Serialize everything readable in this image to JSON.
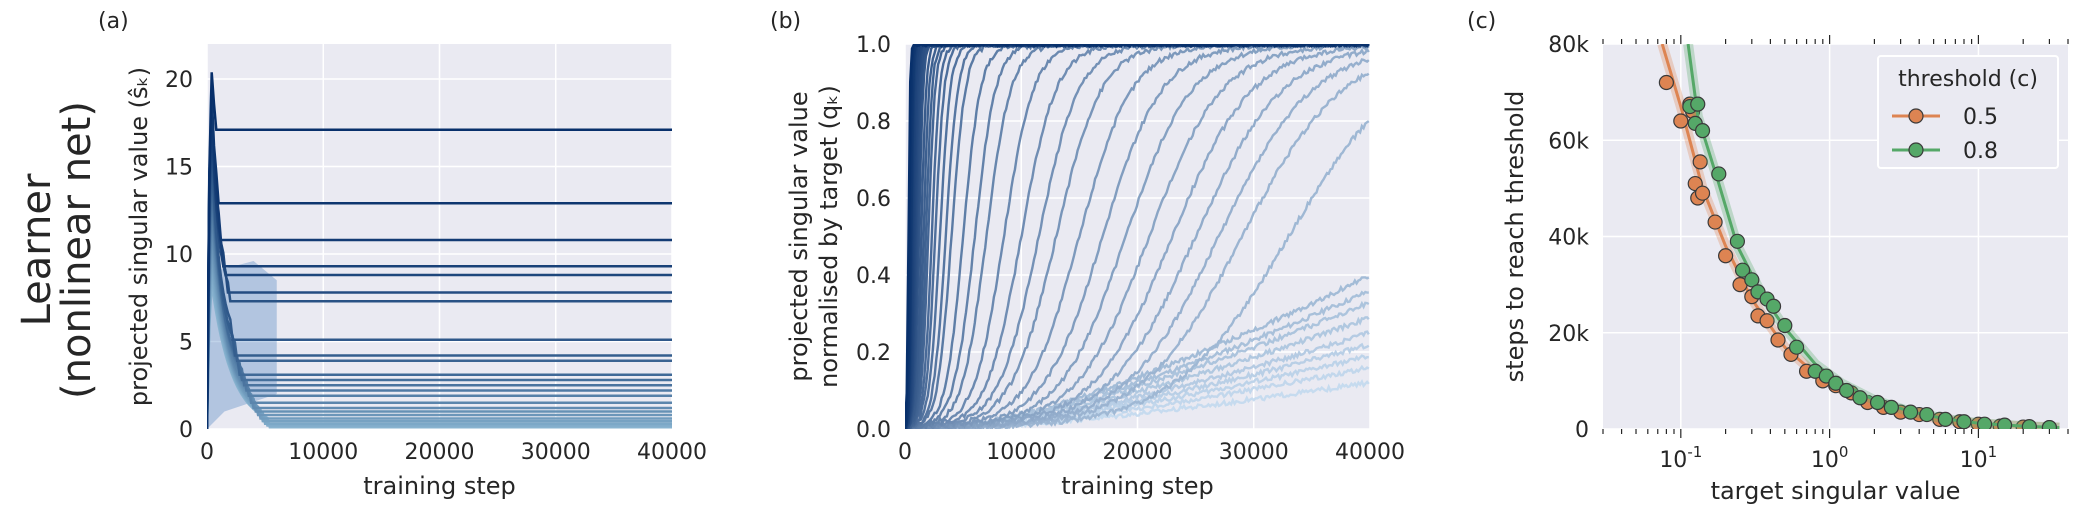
{
  "row_label": [
    "Learner",
    "(nonlinear net)"
  ],
  "chart_data": [
    {
      "id": "a",
      "panel_label": "(a)",
      "type": "line",
      "xlabel": "training step",
      "ylabel": "projected singular value (ŝₖ)",
      "xlim": [
        0,
        40000
      ],
      "ylim": [
        0,
        22
      ],
      "xticks": [
        0,
        10000,
        20000,
        30000,
        40000
      ],
      "yticks": [
        0,
        5,
        10,
        15,
        20
      ],
      "grid": true,
      "color_map": [
        "#9ecae1",
        "#08306b"
      ],
      "plateaus": [
        17.1,
        12.9,
        10.8,
        9.3,
        8.8,
        7.8,
        7.3,
        5.1,
        4.2,
        3.9,
        3.1,
        2.8,
        2.5,
        2.2,
        1.9,
        1.5,
        1.2,
        1.0,
        0.8,
        0.6,
        0.45,
        0.3,
        0.2,
        0.1
      ],
      "spike_peak": 22,
      "plateau_onset_step": 1500
    },
    {
      "id": "b",
      "panel_label": "(b)",
      "type": "line",
      "xlabel": "training step",
      "ylabel_lines": [
        "projected singular value",
        "normalised by target (qₖ)"
      ],
      "xlim": [
        0,
        40000
      ],
      "ylim": [
        0,
        1.0
      ],
      "xticks": [
        0,
        10000,
        20000,
        30000,
        40000
      ],
      "yticks": [
        0.0,
        0.2,
        0.4,
        0.6,
        0.8,
        1.0
      ],
      "ytick_labels": [
        "0.0",
        "0.2",
        "0.4",
        "0.6",
        "0.8",
        "1.0"
      ],
      "grid": true,
      "color_map": [
        "#c6dbef",
        "#08306b"
      ],
      "midpoint_steps": [
        300,
        400,
        500,
        550,
        600,
        700,
        800,
        900,
        1000,
        1100,
        1200,
        1400,
        1600,
        1800,
        2000,
        2300,
        2600,
        3000,
        3500,
        4000,
        5000,
        6000,
        7000,
        8500,
        10000,
        11500,
        13000,
        15000,
        17000,
        19000,
        21000,
        23000,
        25000,
        27000,
        29000,
        33000
      ],
      "slow_final_values": [
        0.4,
        0.36,
        0.33,
        0.29,
        0.25,
        0.22,
        0.19,
        0.16,
        0.12
      ]
    },
    {
      "id": "c",
      "panel_label": "(c)",
      "type": "scatter",
      "xlabel": "target singular value",
      "ylabel": "steps to reach threshold",
      "xscale": "log",
      "xlim": [
        0.03,
        40
      ],
      "xticks": [
        0.1,
        1,
        10
      ],
      "xtick_labels": [
        "10",
        "10",
        "10"
      ],
      "xtick_exponents": [
        "-1",
        "0",
        "1"
      ],
      "ylim": [
        0,
        80000
      ],
      "yticks": [
        0,
        20000,
        40000,
        60000,
        80000
      ],
      "ytick_labels": [
        "0",
        "20k",
        "40k",
        "60k",
        "80k"
      ],
      "grid": true,
      "legend": {
        "title": "threshold (c)",
        "placement": "top-right"
      },
      "series": [
        {
          "name": "0.5",
          "color": "#dd8452",
          "points": [
            [
              0.08,
              72000
            ],
            [
              0.1,
              64000
            ],
            [
              0.115,
              67500
            ],
            [
              0.12,
              66000
            ],
            [
              0.125,
              51000
            ],
            [
              0.13,
              48000
            ],
            [
              0.135,
              55500
            ],
            [
              0.14,
              49000
            ],
            [
              0.17,
              43000
            ],
            [
              0.2,
              36000
            ],
            [
              0.25,
              30000
            ],
            [
              0.3,
              27500
            ],
            [
              0.33,
              23500
            ],
            [
              0.38,
              22500
            ],
            [
              0.45,
              18500
            ],
            [
              0.55,
              15500
            ],
            [
              0.7,
              12000
            ],
            [
              0.9,
              10000
            ],
            [
              1.1,
              9000
            ],
            [
              1.4,
              7500
            ],
            [
              1.8,
              5500
            ],
            [
              2.3,
              4500
            ],
            [
              3.0,
              3500
            ],
            [
              4.0,
              3000
            ],
            [
              5.5,
              2000
            ],
            [
              7.5,
              1500
            ],
            [
              10,
              1000
            ],
            [
              14,
              600
            ],
            [
              20,
              400
            ],
            [
              30,
              300
            ]
          ],
          "fit": [
            [
              0.075,
              80000
            ],
            [
              0.1,
              67000
            ],
            [
              0.14,
              50000
            ],
            [
              0.2,
              38000
            ],
            [
              0.3,
              27000
            ],
            [
              0.5,
              17000
            ],
            [
              0.8,
              11500
            ],
            [
              1.2,
              8200
            ],
            [
              2,
              5200
            ],
            [
              3.5,
              3200
            ],
            [
              6,
              1900
            ],
            [
              10,
              1100
            ],
            [
              20,
              550
            ],
            [
              35,
              300
            ]
          ]
        },
        {
          "name": "0.8",
          "color": "#55a868",
          "points": [
            [
              0.115,
              67000
            ],
            [
              0.125,
              63500
            ],
            [
              0.13,
              67500
            ],
            [
              0.14,
              62000
            ],
            [
              0.18,
              53000
            ],
            [
              0.24,
              39000
            ],
            [
              0.26,
              33000
            ],
            [
              0.3,
              31000
            ],
            [
              0.33,
              28500
            ],
            [
              0.38,
              27000
            ],
            [
              0.42,
              25500
            ],
            [
              0.5,
              21500
            ],
            [
              0.6,
              17000
            ],
            [
              0.8,
              12000
            ],
            [
              0.95,
              11000
            ],
            [
              1.1,
              9500
            ],
            [
              1.3,
              8000
            ],
            [
              1.6,
              6500
            ],
            [
              2.1,
              5500
            ],
            [
              2.6,
              4500
            ],
            [
              3.5,
              3500
            ],
            [
              4.5,
              3000
            ],
            [
              6,
              2000
            ],
            [
              8,
              1500
            ],
            [
              11,
              1000
            ],
            [
              15,
              800
            ],
            [
              22,
              500
            ],
            [
              30,
              300
            ]
          ],
          "fit": [
            [
              0.112,
              80000
            ],
            [
              0.13,
              65000
            ],
            [
              0.18,
              51000
            ],
            [
              0.24,
              38000
            ],
            [
              0.35,
              28000
            ],
            [
              0.5,
              21000
            ],
            [
              0.8,
              13500
            ],
            [
              1.2,
              9500
            ],
            [
              2,
              6000
            ],
            [
              3.5,
              3600
            ],
            [
              6,
              2100
            ],
            [
              10,
              1200
            ],
            [
              20,
              600
            ],
            [
              35,
              300
            ]
          ]
        }
      ]
    }
  ]
}
